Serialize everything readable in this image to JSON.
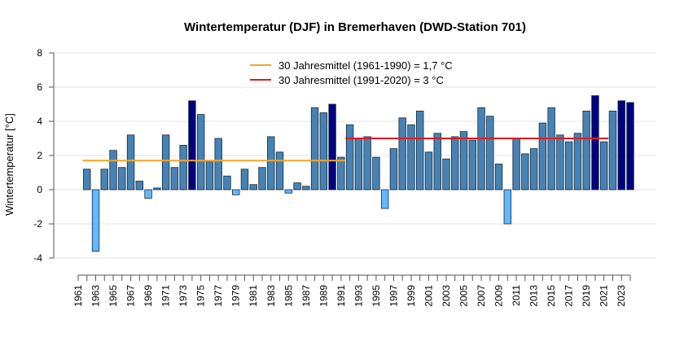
{
  "chart_data": {
    "type": "bar",
    "title": "Wintertemperatur (DJF) in Bremerhaven (DWD-Station 701)",
    "xlabel": "",
    "ylabel": "Wintertemperatur [°C]",
    "ylim": [
      -4,
      8
    ],
    "yticks": [
      -4,
      -2,
      0,
      2,
      4,
      6,
      8
    ],
    "grid": true,
    "legend_position": "top-center",
    "categories": [
      1961,
      1962,
      1963,
      1964,
      1965,
      1966,
      1967,
      1968,
      1969,
      1970,
      1971,
      1972,
      1973,
      1974,
      1975,
      1976,
      1977,
      1978,
      1979,
      1980,
      1981,
      1982,
      1983,
      1984,
      1985,
      1986,
      1987,
      1988,
      1989,
      1990,
      1991,
      1992,
      1993,
      1994,
      1995,
      1996,
      1997,
      1998,
      1999,
      2000,
      2001,
      2002,
      2003,
      2004,
      2005,
      2006,
      2007,
      2008,
      2009,
      2010,
      2011,
      2012,
      2013,
      2014,
      2015,
      2016,
      2017,
      2018,
      2019,
      2020,
      2021,
      2022,
      2023
    ],
    "values": [
      1.2,
      -3.6,
      1.2,
      2.3,
      1.3,
      3.2,
      0.5,
      -0.5,
      0.1,
      3.2,
      1.3,
      2.6,
      5.2,
      4.4,
      1.7,
      3.0,
      0.8,
      -0.3,
      1.2,
      0.3,
      1.3,
      3.1,
      2.2,
      -0.2,
      0.4,
      0.2,
      4.8,
      4.5,
      5.0,
      1.9,
      3.8,
      3.0,
      3.1,
      1.9,
      -1.1,
      2.4,
      4.2,
      3.8,
      4.6,
      2.2,
      3.3,
      1.8,
      3.1,
      3.4,
      2.9,
      4.8,
      4.3,
      1.5,
      -2.0,
      3.0,
      2.1,
      2.4,
      3.9,
      4.8,
      3.2,
      2.8,
      3.3,
      4.6,
      5.5,
      2.8,
      4.6,
      5.2,
      5.1
    ],
    "highlight_years": [
      1973,
      1989,
      2019,
      2022,
      2023
    ],
    "colors": {
      "normal": "#4682b4",
      "negative": "#63b8ff",
      "highlight": "#000080"
    },
    "reference_lines": [
      {
        "name": "30 Jahresmittel (1961-1990) = 1,7 °C",
        "value": 1.7,
        "from": 1961,
        "to": 1990,
        "color": "#f5a623"
      },
      {
        "name": "30 Jahresmittel (1991-2020) = 3 °C",
        "value": 3.0,
        "from": 1991,
        "to": 2020,
        "color": "#e31a1c"
      }
    ]
  }
}
